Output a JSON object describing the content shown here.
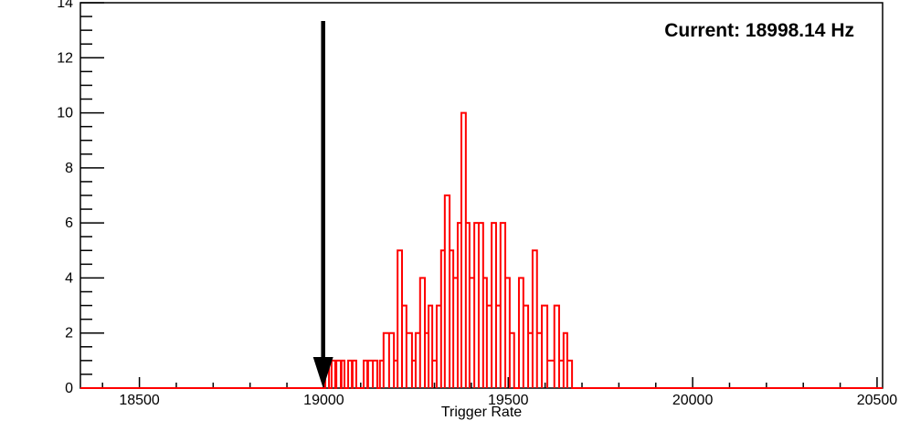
{
  "annotation": {
    "current_label": "Current: 18998.14 Hz"
  },
  "axes": {
    "x": {
      "title": "Trigger Rate",
      "min": 18340,
      "max": 20515,
      "major_ticks": [
        18500,
        19000,
        19500,
        20000,
        20500
      ],
      "major_tick_labels": [
        "18500",
        "19000",
        "19500",
        "20000",
        "20500"
      ],
      "minor_tick_step": 100
    },
    "y": {
      "title": "",
      "min": 0,
      "max": 14,
      "major_ticks": [
        0,
        2,
        4,
        6,
        8,
        10,
        12,
        14
      ],
      "major_tick_labels": [
        "0",
        "2",
        "4",
        "6",
        "8",
        "10",
        "12",
        "14"
      ],
      "minor_tick_step": 0.5
    }
  },
  "chart_data": {
    "type": "bar",
    "style": "step-histogram",
    "title": "",
    "xlabel": "Trigger Rate",
    "ylabel": "",
    "xlim": [
      18340,
      20515
    ],
    "ylim": [
      0,
      14
    ],
    "line_color": "#ff0000",
    "marker": {
      "shape": "down-arrow",
      "color": "#000000",
      "x_hz": 18998.14,
      "label": "Current: 18998.14 Hz"
    },
    "bins_format": [
      "hz_start",
      "hz_end",
      "count"
    ],
    "bins": [
      [
        19004,
        19014,
        1
      ],
      [
        19021,
        19031,
        1
      ],
      [
        19034,
        19046,
        1
      ],
      [
        19048,
        19056,
        1
      ],
      [
        19066,
        19076,
        1
      ],
      [
        19078,
        19088,
        1
      ],
      [
        19108,
        19118,
        1
      ],
      [
        19120,
        19133,
        1
      ],
      [
        19133,
        19145,
        1
      ],
      [
        19152,
        19162,
        1
      ],
      [
        19162,
        19177,
        2
      ],
      [
        19177,
        19190,
        2
      ],
      [
        19190,
        19200,
        1
      ],
      [
        19200,
        19212,
        5
      ],
      [
        19212,
        19224,
        3
      ],
      [
        19224,
        19239,
        2
      ],
      [
        19239,
        19249,
        1
      ],
      [
        19249,
        19261,
        2
      ],
      [
        19261,
        19274,
        4
      ],
      [
        19274,
        19284,
        2
      ],
      [
        19284,
        19294,
        3
      ],
      [
        19294,
        19306,
        1
      ],
      [
        19306,
        19318,
        3
      ],
      [
        19318,
        19328,
        5
      ],
      [
        19328,
        19341,
        7
      ],
      [
        19341,
        19351,
        5
      ],
      [
        19351,
        19363,
        4
      ],
      [
        19363,
        19373,
        6
      ],
      [
        19373,
        19385,
        10
      ],
      [
        19385,
        19395,
        6
      ],
      [
        19395,
        19408,
        4
      ],
      [
        19408,
        19420,
        6
      ],
      [
        19420,
        19432,
        6
      ],
      [
        19432,
        19442,
        4
      ],
      [
        19442,
        19455,
        3
      ],
      [
        19455,
        19467,
        6
      ],
      [
        19467,
        19479,
        3
      ],
      [
        19479,
        19492,
        6
      ],
      [
        19492,
        19504,
        4
      ],
      [
        19504,
        19516,
        2
      ],
      [
        19529,
        19541,
        4
      ],
      [
        19541,
        19554,
        3
      ],
      [
        19554,
        19566,
        2
      ],
      [
        19566,
        19578,
        5
      ],
      [
        19578,
        19591,
        2
      ],
      [
        19591,
        19606,
        3
      ],
      [
        19606,
        19625,
        1
      ],
      [
        19625,
        19638,
        3
      ],
      [
        19638,
        19650,
        1
      ],
      [
        19650,
        19660,
        2
      ],
      [
        19660,
        19673,
        1
      ]
    ]
  }
}
